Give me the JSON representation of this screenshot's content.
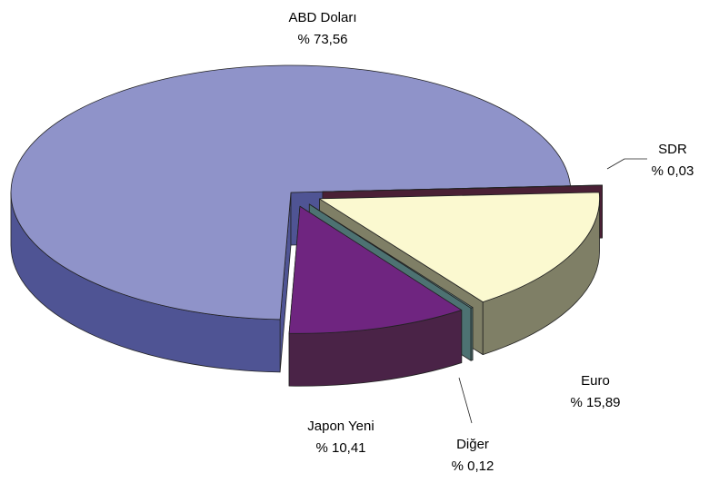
{
  "chart_data": {
    "type": "pie3d",
    "categories": [
      "SDR",
      "Euro",
      "Diğer",
      "Japon Yeni",
      "ABD Doları"
    ],
    "values": [
      0.03,
      15.89,
      0.12,
      10.41,
      73.56
    ],
    "value_labels": [
      "% 0,03",
      "% 15,89",
      "% 0,12",
      "% 10,41",
      "% 73,56"
    ],
    "colors": [
      "#5e2a45",
      "#fbf9d0",
      "#6a9494",
      "#6f2580",
      "#8f93c9"
    ],
    "side_colors": [
      "#4a2035",
      "#7f7f66",
      "#4d7272",
      "#4a2347",
      "#4f5494"
    ]
  }
}
